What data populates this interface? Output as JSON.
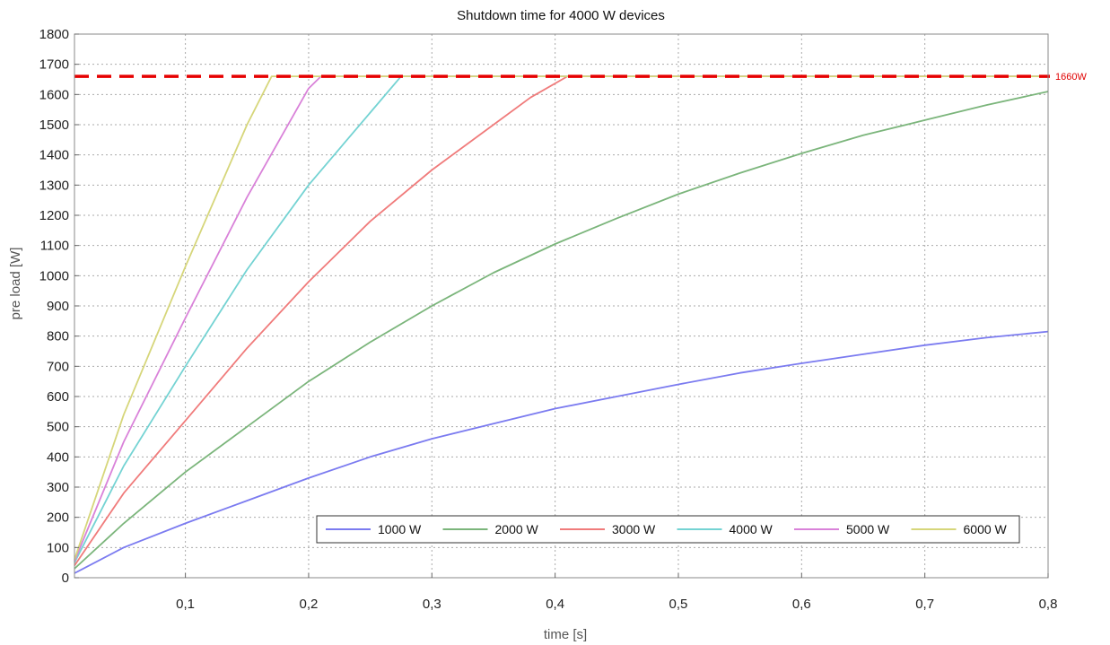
{
  "chart_data": {
    "type": "line",
    "title": "Shutdown time for 4000 W devices",
    "xlabel": "time [s]",
    "ylabel": "pre load [W]",
    "xlim": [
      0.01,
      0.8
    ],
    "ylim": [
      0,
      1800
    ],
    "grid": true,
    "legend_position": "bottom-center",
    "x_ticks": [
      0.1,
      0.2,
      0.3,
      0.4,
      0.5,
      0.6,
      0.7,
      0.8
    ],
    "x_tick_labels": [
      "0,1",
      "0,2",
      "0,3",
      "0,4",
      "0,5",
      "0,6",
      "0,7",
      "0,8"
    ],
    "y_ticks": [
      0,
      100,
      200,
      300,
      400,
      500,
      600,
      700,
      800,
      900,
      1000,
      1100,
      1200,
      1300,
      1400,
      1500,
      1600,
      1700,
      1800
    ],
    "reference_line": {
      "y": 1660,
      "label": "1660W",
      "color": "#e60000"
    },
    "series": [
      {
        "name": "1000 W",
        "color": "#7b7bf0",
        "points": [
          [
            0.01,
            15
          ],
          [
            0.05,
            100
          ],
          [
            0.1,
            180
          ],
          [
            0.15,
            255
          ],
          [
            0.2,
            330
          ],
          [
            0.25,
            400
          ],
          [
            0.3,
            460
          ],
          [
            0.35,
            510
          ],
          [
            0.4,
            560
          ],
          [
            0.45,
            600
          ],
          [
            0.5,
            640
          ],
          [
            0.55,
            678
          ],
          [
            0.6,
            710
          ],
          [
            0.65,
            740
          ],
          [
            0.7,
            770
          ],
          [
            0.75,
            795
          ],
          [
            0.8,
            815
          ]
        ]
      },
      {
        "name": "2000 W",
        "color": "#7bb57b",
        "points": [
          [
            0.01,
            30
          ],
          [
            0.05,
            180
          ],
          [
            0.1,
            350
          ],
          [
            0.15,
            500
          ],
          [
            0.2,
            650
          ],
          [
            0.25,
            780
          ],
          [
            0.3,
            900
          ],
          [
            0.35,
            1010
          ],
          [
            0.4,
            1105
          ],
          [
            0.45,
            1190
          ],
          [
            0.5,
            1270
          ],
          [
            0.55,
            1340
          ],
          [
            0.6,
            1405
          ],
          [
            0.65,
            1465
          ],
          [
            0.7,
            1515
          ],
          [
            0.75,
            1565
          ],
          [
            0.8,
            1610
          ]
        ]
      },
      {
        "name": "3000 W",
        "color": "#f07b7b",
        "points": [
          [
            0.01,
            40
          ],
          [
            0.05,
            280
          ],
          [
            0.1,
            520
          ],
          [
            0.15,
            760
          ],
          [
            0.2,
            980
          ],
          [
            0.25,
            1180
          ],
          [
            0.3,
            1350
          ],
          [
            0.35,
            1500
          ],
          [
            0.38,
            1590
          ],
          [
            0.41,
            1660
          ],
          [
            0.8,
            1660
          ]
        ]
      },
      {
        "name": "4000 W",
        "color": "#74d3d3",
        "points": [
          [
            0.01,
            50
          ],
          [
            0.05,
            370
          ],
          [
            0.1,
            700
          ],
          [
            0.15,
            1020
          ],
          [
            0.2,
            1300
          ],
          [
            0.25,
            1540
          ],
          [
            0.275,
            1660
          ],
          [
            0.8,
            1660
          ]
        ]
      },
      {
        "name": "5000 W",
        "color": "#d982d9",
        "points": [
          [
            0.01,
            55
          ],
          [
            0.05,
            450
          ],
          [
            0.1,
            860
          ],
          [
            0.15,
            1260
          ],
          [
            0.2,
            1620
          ],
          [
            0.21,
            1660
          ],
          [
            0.8,
            1660
          ]
        ]
      },
      {
        "name": "6000 W",
        "color": "#d6d67a",
        "points": [
          [
            0.01,
            60
          ],
          [
            0.05,
            540
          ],
          [
            0.1,
            1030
          ],
          [
            0.15,
            1500
          ],
          [
            0.17,
            1660
          ],
          [
            0.8,
            1660
          ]
        ]
      }
    ]
  }
}
